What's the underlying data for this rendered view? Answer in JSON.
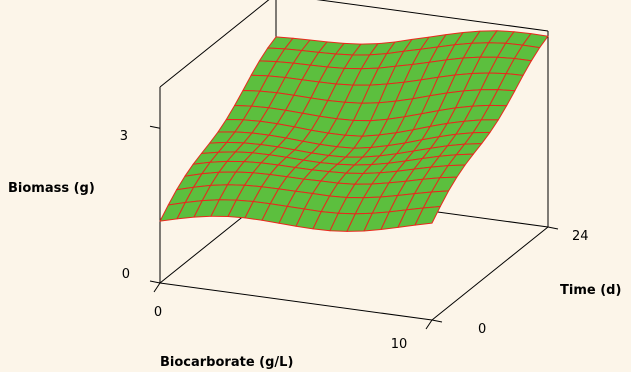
{
  "chart_data": {
    "type": "surface",
    "title": "",
    "xlabel": "Biocarborate (g/L)",
    "ylabel": "Time (d)",
    "zlabel": "Biomass (g)",
    "x_ticks": [
      {
        "value": 0,
        "label": "0"
      },
      {
        "value": 10,
        "label": "10"
      }
    ],
    "y_ticks": [
      {
        "value": 0,
        "label": "0"
      },
      {
        "value": 24,
        "label": "24"
      }
    ],
    "z_ticks": [
      {
        "value": 0,
        "label": "0"
      },
      {
        "value": 3,
        "label": "3"
      }
    ],
    "xlim": [
      0,
      10
    ],
    "ylim": [
      0,
      24
    ],
    "zlim": [
      0,
      3.8
    ],
    "surface": {
      "face_color": "#5cbf3e",
      "edge_color": "#e8291d",
      "x": [
        0,
        10
      ],
      "y": [
        0,
        24
      ],
      "z_corners": {
        "x0_y0": 1.2,
        "x10_y0": 1.8,
        "x0_y24": 2.8,
        "x10_y24": 3.6
      }
    }
  }
}
